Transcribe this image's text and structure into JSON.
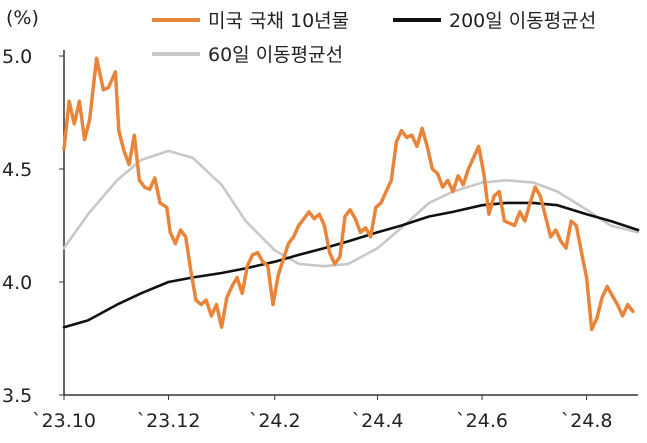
{
  "chart_data": {
    "type": "line",
    "ylabel": "(%)",
    "ylim": [
      3.5,
      5.0
    ],
    "yticks": [
      "5.0",
      "4.5",
      "4.0",
      "3.5"
    ],
    "xlim": [
      "2023-10-01",
      "2024-08-31"
    ],
    "xticks": [
      {
        "date": "2023-10-01",
        "label": "`23.10"
      },
      {
        "date": "2023-12-01",
        "label": "`23.12"
      },
      {
        "date": "2024-02-01",
        "label": "`24.2"
      },
      {
        "date": "2024-04-01",
        "label": "`24.4"
      },
      {
        "date": "2024-06-01",
        "label": "`24.6"
      },
      {
        "date": "2024-08-01",
        "label": "`24.8"
      }
    ],
    "grid": false,
    "legend": "top",
    "series": [
      {
        "name": "미국 국채 10년물",
        "color": "#e8853a",
        "points": [
          [
            "2023-10-01",
            4.59
          ],
          [
            "2023-10-04",
            4.8
          ],
          [
            "2023-10-07",
            4.7
          ],
          [
            "2023-10-10",
            4.8
          ],
          [
            "2023-10-13",
            4.63
          ],
          [
            "2023-10-16",
            4.72
          ],
          [
            "2023-10-19",
            4.92
          ],
          [
            "2023-10-20",
            4.99
          ],
          [
            "2023-10-24",
            4.85
          ],
          [
            "2023-10-27",
            4.86
          ],
          [
            "2023-10-31",
            4.93
          ],
          [
            "2023-11-02",
            4.67
          ],
          [
            "2023-11-05",
            4.58
          ],
          [
            "2023-11-08",
            4.52
          ],
          [
            "2023-11-11",
            4.65
          ],
          [
            "2023-11-14",
            4.45
          ],
          [
            "2023-11-17",
            4.42
          ],
          [
            "2023-11-20",
            4.41
          ],
          [
            "2023-11-23",
            4.46
          ],
          [
            "2023-11-26",
            4.35
          ],
          [
            "2023-11-30",
            4.33
          ],
          [
            "2023-12-02",
            4.22
          ],
          [
            "2023-12-05",
            4.17
          ],
          [
            "2023-12-08",
            4.23
          ],
          [
            "2023-12-11",
            4.2
          ],
          [
            "2023-12-14",
            4.05
          ],
          [
            "2023-12-17",
            3.92
          ],
          [
            "2023-12-20",
            3.9
          ],
          [
            "2023-12-23",
            3.92
          ],
          [
            "2023-12-26",
            3.85
          ],
          [
            "2023-12-29",
            3.9
          ],
          [
            "2024-01-01",
            3.8
          ],
          [
            "2024-01-04",
            3.93
          ],
          [
            "2024-01-07",
            3.98
          ],
          [
            "2024-01-10",
            4.02
          ],
          [
            "2024-01-13",
            3.95
          ],
          [
            "2024-01-16",
            4.07
          ],
          [
            "2024-01-19",
            4.12
          ],
          [
            "2024-01-22",
            4.13
          ],
          [
            "2024-01-25",
            4.09
          ],
          [
            "2024-01-28",
            4.07
          ],
          [
            "2024-01-31",
            3.9
          ],
          [
            "2024-02-03",
            4.03
          ],
          [
            "2024-02-06",
            4.1
          ],
          [
            "2024-02-09",
            4.17
          ],
          [
            "2024-02-12",
            4.2
          ],
          [
            "2024-02-15",
            4.25
          ],
          [
            "2024-02-18",
            4.28
          ],
          [
            "2024-02-21",
            4.31
          ],
          [
            "2024-02-24",
            4.28
          ],
          [
            "2024-02-27",
            4.3
          ],
          [
            "2024-03-01",
            4.25
          ],
          [
            "2024-03-04",
            4.13
          ],
          [
            "2024-03-07",
            4.08
          ],
          [
            "2024-03-10",
            4.11
          ],
          [
            "2024-03-13",
            4.29
          ],
          [
            "2024-03-16",
            4.32
          ],
          [
            "2024-03-19",
            4.28
          ],
          [
            "2024-03-22",
            4.22
          ],
          [
            "2024-03-25",
            4.24
          ],
          [
            "2024-03-28",
            4.2
          ],
          [
            "2024-03-31",
            4.33
          ],
          [
            "2024-04-03",
            4.35
          ],
          [
            "2024-04-06",
            4.4
          ],
          [
            "2024-04-09",
            4.45
          ],
          [
            "2024-04-12",
            4.62
          ],
          [
            "2024-04-15",
            4.67
          ],
          [
            "2024-04-18",
            4.64
          ],
          [
            "2024-04-21",
            4.65
          ],
          [
            "2024-04-24",
            4.6
          ],
          [
            "2024-04-27",
            4.68
          ],
          [
            "2024-04-30",
            4.6
          ],
          [
            "2024-05-03",
            4.5
          ],
          [
            "2024-05-06",
            4.48
          ],
          [
            "2024-05-09",
            4.42
          ],
          [
            "2024-05-12",
            4.45
          ],
          [
            "2024-05-15",
            4.4
          ],
          [
            "2024-05-18",
            4.47
          ],
          [
            "2024-05-21",
            4.43
          ],
          [
            "2024-05-24",
            4.5
          ],
          [
            "2024-05-27",
            4.55
          ],
          [
            "2024-05-30",
            4.6
          ],
          [
            "2024-06-02",
            4.48
          ],
          [
            "2024-06-05",
            4.3
          ],
          [
            "2024-06-08",
            4.38
          ],
          [
            "2024-06-11",
            4.4
          ],
          [
            "2024-06-14",
            4.27
          ],
          [
            "2024-06-17",
            4.26
          ],
          [
            "2024-06-20",
            4.25
          ],
          [
            "2024-06-23",
            4.31
          ],
          [
            "2024-06-26",
            4.27
          ],
          [
            "2024-06-29",
            4.35
          ],
          [
            "2024-07-02",
            4.42
          ],
          [
            "2024-07-05",
            4.38
          ],
          [
            "2024-07-08",
            4.29
          ],
          [
            "2024-07-11",
            4.2
          ],
          [
            "2024-07-14",
            4.23
          ],
          [
            "2024-07-17",
            4.18
          ],
          [
            "2024-07-20",
            4.15
          ],
          [
            "2024-07-23",
            4.27
          ],
          [
            "2024-07-26",
            4.25
          ],
          [
            "2024-07-29",
            4.13
          ],
          [
            "2024-08-01",
            4.02
          ],
          [
            "2024-08-04",
            3.79
          ],
          [
            "2024-08-07",
            3.84
          ],
          [
            "2024-08-10",
            3.93
          ],
          [
            "2024-08-13",
            3.98
          ],
          [
            "2024-08-16",
            3.94
          ],
          [
            "2024-08-19",
            3.9
          ],
          [
            "2024-08-22",
            3.85
          ],
          [
            "2024-08-25",
            3.9
          ],
          [
            "2024-08-28",
            3.87
          ]
        ]
      },
      {
        "name": "200일 이동평균선",
        "color": "#111111",
        "points": [
          [
            "2023-10-01",
            3.8
          ],
          [
            "2023-10-15",
            3.83
          ],
          [
            "2023-11-01",
            3.9
          ],
          [
            "2023-11-15",
            3.95
          ],
          [
            "2023-12-01",
            4.0
          ],
          [
            "2023-12-15",
            4.02
          ],
          [
            "2024-01-01",
            4.04
          ],
          [
            "2024-01-15",
            4.06
          ],
          [
            "2024-02-01",
            4.09
          ],
          [
            "2024-02-15",
            4.12
          ],
          [
            "2024-03-01",
            4.15
          ],
          [
            "2024-03-15",
            4.18
          ],
          [
            "2024-04-01",
            4.22
          ],
          [
            "2024-04-15",
            4.25
          ],
          [
            "2024-05-01",
            4.29
          ],
          [
            "2024-05-15",
            4.31
          ],
          [
            "2024-06-01",
            4.34
          ],
          [
            "2024-06-15",
            4.35
          ],
          [
            "2024-07-01",
            4.35
          ],
          [
            "2024-07-15",
            4.34
          ],
          [
            "2024-08-01",
            4.3
          ],
          [
            "2024-08-15",
            4.27
          ],
          [
            "2024-08-31",
            4.23
          ]
        ]
      },
      {
        "name": "60일 이동평균선",
        "color": "#c8c8c8",
        "points": [
          [
            "2023-10-01",
            4.15
          ],
          [
            "2023-10-15",
            4.3
          ],
          [
            "2023-11-01",
            4.45
          ],
          [
            "2023-11-15",
            4.54
          ],
          [
            "2023-12-01",
            4.58
          ],
          [
            "2023-12-15",
            4.55
          ],
          [
            "2024-01-01",
            4.43
          ],
          [
            "2024-01-15",
            4.27
          ],
          [
            "2024-02-01",
            4.14
          ],
          [
            "2024-02-15",
            4.08
          ],
          [
            "2024-03-01",
            4.07
          ],
          [
            "2024-03-15",
            4.08
          ],
          [
            "2024-04-01",
            4.15
          ],
          [
            "2024-04-15",
            4.24
          ],
          [
            "2024-05-01",
            4.35
          ],
          [
            "2024-05-15",
            4.4
          ],
          [
            "2024-06-01",
            4.44
          ],
          [
            "2024-06-15",
            4.45
          ],
          [
            "2024-07-01",
            4.44
          ],
          [
            "2024-07-15",
            4.4
          ],
          [
            "2024-08-01",
            4.32
          ],
          [
            "2024-08-15",
            4.25
          ],
          [
            "2024-08-31",
            4.22
          ]
        ]
      }
    ]
  }
}
